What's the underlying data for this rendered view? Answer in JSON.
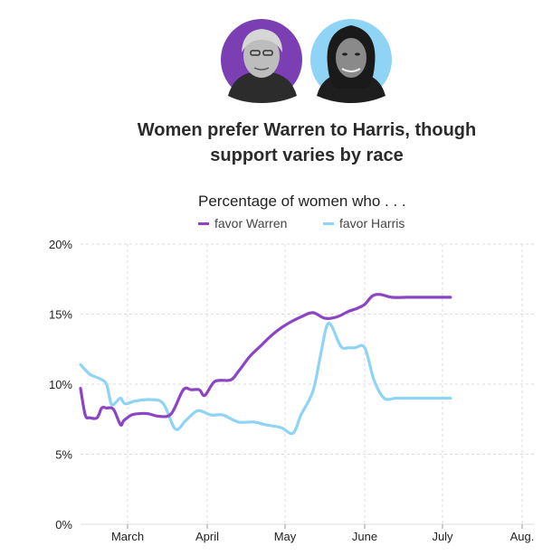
{
  "header": {
    "title_line1": "Women prefer Warren to Harris, though",
    "title_line2": "support varies by race",
    "portraits": [
      {
        "name": "warren-portrait",
        "ring_color": "#7b3fb3"
      },
      {
        "name": "harris-portrait",
        "ring_color": "#8fd3f5"
      }
    ]
  },
  "legend": {
    "intro": "Percentage of women who . . .",
    "items": [
      "favor Warren",
      "favor Harris"
    ]
  },
  "colors": {
    "warren": "#8a44c4",
    "harris": "#8fd3f5",
    "grid": "#dddddd",
    "tick": "#222222"
  },
  "chart_data": {
    "type": "line",
    "ylim": [
      0,
      20
    ],
    "y_ticks": [
      0,
      5,
      10,
      15,
      20
    ],
    "y_tick_labels": [
      "0%",
      "5%",
      "10%",
      "15%",
      "20%"
    ],
    "x_tick_labels": [
      "March",
      "April",
      "May",
      "June",
      "July",
      "Aug."
    ],
    "grid": true,
    "legend_position": "top",
    "series": [
      {
        "name": "favor Warren",
        "x": [
          0.0,
          0.1,
          0.2,
          0.35,
          0.45,
          0.55,
          0.7,
          0.85,
          0.92,
          1.05,
          1.15,
          1.25,
          1.4,
          1.55,
          1.7,
          1.8,
          1.9,
          1.97,
          2.1,
          2.3,
          2.4,
          2.55,
          2.7,
          2.83,
          3.0,
          3.2,
          3.35,
          3.5,
          3.65,
          3.8,
          3.9,
          4.0,
          4.1,
          4.2,
          4.35,
          4.55,
          4.65,
          4.8,
          4.9,
          5.0,
          5.1
        ],
        "values": [
          9.7,
          7.8,
          7.6,
          7.6,
          8.3,
          8.3,
          8.2,
          7.1,
          7.4,
          7.8,
          7.9,
          7.9,
          7.7,
          7.9,
          9.6,
          9.6,
          9.6,
          9.2,
          10.2,
          10.3,
          10.9,
          12.0,
          12.8,
          13.5,
          14.2,
          14.8,
          15.1,
          14.7,
          14.8,
          15.2,
          15.4,
          15.7,
          16.3,
          16.4,
          16.2,
          16.2,
          16.2,
          16.2,
          16.2,
          16.2,
          16.2
        ]
      },
      {
        "name": "favor Harris",
        "x": [
          0.0,
          0.2,
          0.4,
          0.55,
          0.65,
          0.75,
          0.85,
          0.95,
          1.1,
          1.3,
          1.45,
          1.6,
          1.73,
          1.88,
          2.05,
          2.2,
          2.4,
          2.6,
          2.75,
          2.95,
          3.1,
          3.2,
          3.35,
          3.45,
          3.52,
          3.58,
          3.7,
          3.8,
          3.88,
          4.0,
          4.12,
          4.25,
          4.4,
          4.55,
          4.7,
          4.85,
          5.0,
          5.1
        ],
        "values": [
          11.4,
          10.7,
          10.4,
          10.0,
          8.6,
          8.7,
          9.0,
          8.6,
          8.8,
          8.9,
          8.6,
          6.8,
          7.4,
          8.1,
          7.8,
          7.8,
          7.3,
          7.3,
          7.1,
          6.9,
          6.5,
          7.8,
          9.5,
          12.2,
          14.1,
          14.2,
          12.7,
          12.6,
          12.6,
          12.6,
          10.3,
          9.0,
          9.0,
          9.0,
          9.0,
          9.0,
          9.0,
          9.0
        ]
      }
    ]
  }
}
